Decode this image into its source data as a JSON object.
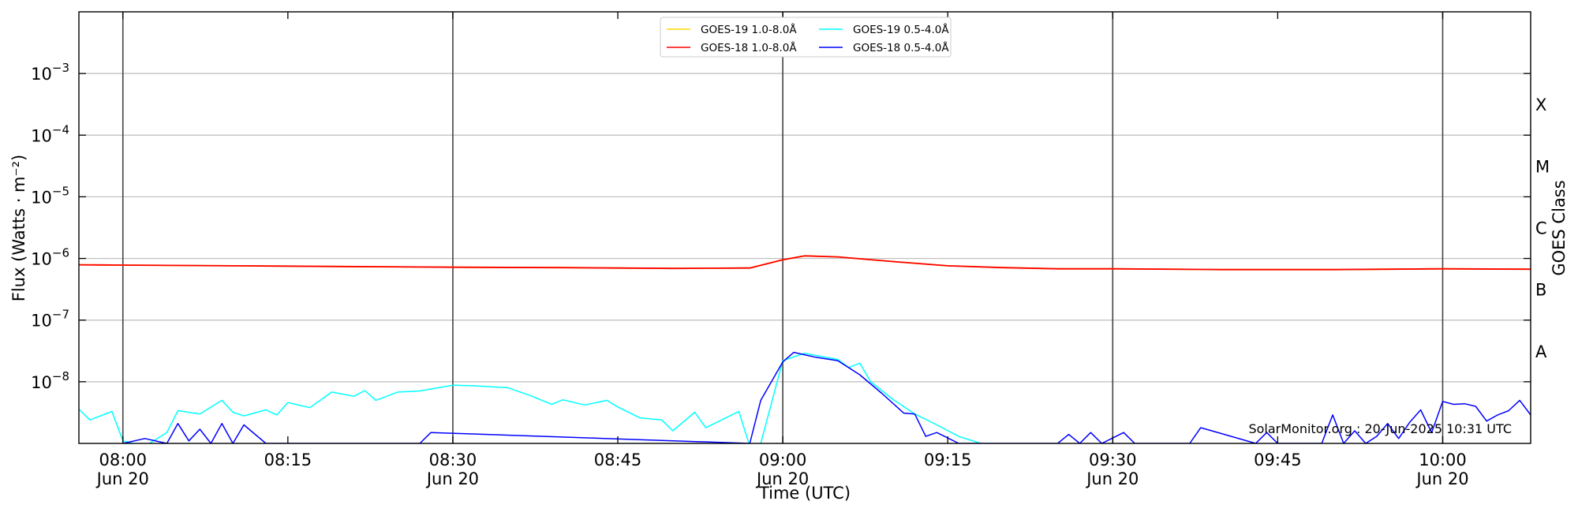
{
  "chart_data": {
    "type": "line",
    "title": "",
    "xlabel": "Time (UTC)",
    "ylabel": "Flux (Watts · m⁻²)",
    "y_scale": "log",
    "ylim": [
      1e-09,
      0.01
    ],
    "xlim": [
      "2025-06-20 07:56",
      "2025-06-20 10:08"
    ],
    "grid": "horizontal at decades, vertical at half-hours",
    "legend_position": "top-center",
    "y_ticks": [
      {
        "value": 1e-08,
        "base": "10",
        "exp": "−8"
      },
      {
        "value": 1e-07,
        "base": "10",
        "exp": "−7"
      },
      {
        "value": 1e-06,
        "base": "10",
        "exp": "−6"
      },
      {
        "value": 1e-05,
        "base": "10",
        "exp": "−5"
      },
      {
        "value": 0.0001,
        "base": "10",
        "exp": "−4"
      },
      {
        "value": 0.001,
        "base": "10",
        "exp": "−3"
      }
    ],
    "x_ticks": [
      {
        "time": "2025-06-20 08:00",
        "label": "08:00",
        "sublabel": "Jun 20"
      },
      {
        "time": "2025-06-20 08:15",
        "label": "08:15",
        "sublabel": ""
      },
      {
        "time": "2025-06-20 08:30",
        "label": "08:30",
        "sublabel": "Jun 20"
      },
      {
        "time": "2025-06-20 08:45",
        "label": "08:45",
        "sublabel": ""
      },
      {
        "time": "2025-06-20 09:00",
        "label": "09:00",
        "sublabel": "Jun 20"
      },
      {
        "time": "2025-06-20 09:15",
        "label": "09:15",
        "sublabel": ""
      },
      {
        "time": "2025-06-20 09:30",
        "label": "09:30",
        "sublabel": "Jun 20"
      },
      {
        "time": "2025-06-20 09:45",
        "label": "09:45",
        "sublabel": ""
      },
      {
        "time": "2025-06-20 10:00",
        "label": "10:00",
        "sublabel": "Jun 20"
      }
    ],
    "vertical_lines": [
      "2025-06-20 08:00",
      "2025-06-20 08:30",
      "2025-06-20 09:00",
      "2025-06-20 09:30",
      "2025-06-20 10:00"
    ],
    "right_axis": {
      "label": "GOES Class",
      "classes": [
        {
          "name": "A",
          "value": 3.16e-08
        },
        {
          "name": "B",
          "value": 3.16e-07
        },
        {
          "name": "C",
          "value": 3.16e-06
        },
        {
          "name": "M",
          "value": 3.16e-05
        },
        {
          "name": "X",
          "value": 0.000316
        }
      ]
    },
    "annotation": "SolarMonitor.org : 20-Jun-2025 10:31 UTC",
    "series": [
      {
        "name": "GOES-19 1.0-8.0Å",
        "color": "#ffd700",
        "x": [
          "2025-06-20 07:56",
          "2025-06-20 08:00",
          "2025-06-20 08:10",
          "2025-06-20 08:20",
          "2025-06-20 08:30",
          "2025-06-20 08:40",
          "2025-06-20 08:50",
          "2025-06-20 08:57",
          "2025-06-20 09:00",
          "2025-06-20 09:02",
          "2025-06-20 09:05",
          "2025-06-20 09:10",
          "2025-06-20 09:15",
          "2025-06-20 09:20",
          "2025-06-20 09:25",
          "2025-06-20 09:30",
          "2025-06-20 09:40",
          "2025-06-20 09:50",
          "2025-06-20 10:00",
          "2025-06-20 10:08"
        ],
        "values": [
          7.9e-07,
          7.8e-07,
          7.6e-07,
          7.4e-07,
          7.2e-07,
          7.1e-07,
          6.9e-07,
          7e-07,
          9.5e-07,
          1.1e-06,
          1.06e-06,
          8.9e-07,
          7.6e-07,
          7.1e-07,
          6.8e-07,
          6.8e-07,
          6.6e-07,
          6.6e-07,
          6.8e-07,
          6.7e-07
        ]
      },
      {
        "name": "GOES-18 1.0-8.0Å",
        "color": "#ff0000",
        "x": [
          "2025-06-20 07:56",
          "2025-06-20 08:00",
          "2025-06-20 08:10",
          "2025-06-20 08:20",
          "2025-06-20 08:30",
          "2025-06-20 08:40",
          "2025-06-20 08:50",
          "2025-06-20 08:57",
          "2025-06-20 09:00",
          "2025-06-20 09:02",
          "2025-06-20 09:05",
          "2025-06-20 09:10",
          "2025-06-20 09:15",
          "2025-06-20 09:20",
          "2025-06-20 09:25",
          "2025-06-20 09:30",
          "2025-06-20 09:40",
          "2025-06-20 09:50",
          "2025-06-20 10:00",
          "2025-06-20 10:08"
        ],
        "values": [
          7.9e-07,
          7.8e-07,
          7.6e-07,
          7.4e-07,
          7.2e-07,
          7.1e-07,
          6.9e-07,
          7e-07,
          9.5e-07,
          1.1e-06,
          1.06e-06,
          8.9e-07,
          7.6e-07,
          7.1e-07,
          6.8e-07,
          6.8e-07,
          6.6e-07,
          6.6e-07,
          6.8e-07,
          6.7e-07
        ]
      },
      {
        "name": "GOES-19 0.5-4.0Å",
        "color": "#00ffff",
        "x": [
          "2025-06-20 07:56",
          "2025-06-20 07:57",
          "2025-06-20 07:59",
          "2025-06-20 08:00",
          "2025-06-20 08:02",
          "2025-06-20 08:04",
          "2025-06-20 08:05",
          "2025-06-20 08:07",
          "2025-06-20 08:09",
          "2025-06-20 08:10",
          "2025-06-20 08:11",
          "2025-06-20 08:13",
          "2025-06-20 08:14",
          "2025-06-20 08:15",
          "2025-06-20 08:17",
          "2025-06-20 08:19",
          "2025-06-20 08:21",
          "2025-06-20 08:22",
          "2025-06-20 08:23",
          "2025-06-20 08:25",
          "2025-06-20 08:27",
          "2025-06-20 08:30",
          "2025-06-20 08:32",
          "2025-06-20 08:34",
          "2025-06-20 08:35",
          "2025-06-20 08:37",
          "2025-06-20 08:39",
          "2025-06-20 08:40",
          "2025-06-20 08:42",
          "2025-06-20 08:44",
          "2025-06-20 08:45",
          "2025-06-20 08:47",
          "2025-06-20 08:49",
          "2025-06-20 08:50",
          "2025-06-20 08:52",
          "2025-06-20 08:53",
          "2025-06-20 08:54",
          "2025-06-20 08:56",
          "2025-06-20 08:57",
          "2025-06-20 08:58",
          "2025-06-20 09:00",
          "2025-06-20 09:02",
          "2025-06-20 09:05",
          "2025-06-20 09:06",
          "2025-06-20 09:07",
          "2025-06-20 09:08",
          "2025-06-20 09:10",
          "2025-06-20 09:12",
          "2025-06-20 09:14",
          "2025-06-20 09:16",
          "2025-06-20 09:18",
          "2025-06-20 09:19"
        ],
        "values": [
          3.6e-09,
          2.4e-09,
          3.3e-09,
          1.1e-09,
          9e-10,
          1.5e-09,
          3.4e-09,
          3e-09,
          5e-09,
          3.2e-09,
          2.8e-09,
          3.5e-09,
          2.9e-09,
          4.6e-09,
          3.8e-09,
          6.8e-09,
          5.8e-09,
          7.2e-09,
          5e-09,
          6.8e-09,
          7.1e-09,
          8.8e-09,
          8.6e-09,
          8.2e-09,
          8e-09,
          6e-09,
          4.3e-09,
          5.1e-09,
          4.2e-09,
          5e-09,
          3.9e-09,
          2.6e-09,
          2.4e-09,
          1.6e-09,
          3.2e-09,
          1.8e-09,
          2.2e-09,
          3.3e-09,
          9e-10,
          1e-09,
          2.2e-08,
          2.9e-08,
          2.3e-08,
          1.7e-08,
          2e-08,
          1e-08,
          5.2e-09,
          3e-09,
          2e-09,
          1.3e-09,
          1e-09,
          9e-10
        ]
      },
      {
        "name": "GOES-18 0.5-4.0Å",
        "color": "#0000ff",
        "x": [
          "2025-06-20 08:00",
          "2025-06-20 08:02",
          "2025-06-20 08:04",
          "2025-06-20 08:05",
          "2025-06-20 08:06",
          "2025-06-20 08:07",
          "2025-06-20 08:08",
          "2025-06-20 08:09",
          "2025-06-20 08:10",
          "2025-06-20 08:11",
          "2025-06-20 08:13",
          "2025-06-20 08:14",
          "2025-06-20 08:27",
          "2025-06-20 08:28",
          "2025-06-20 08:57",
          "2025-06-20 08:58",
          "2025-06-20 09:00",
          "2025-06-20 09:01",
          "2025-06-20 09:03",
          "2025-06-20 09:05",
          "2025-06-20 09:07",
          "2025-06-20 09:09",
          "2025-06-20 09:11",
          "2025-06-20 09:12",
          "2025-06-20 09:13",
          "2025-06-20 09:14",
          "2025-06-20 09:16",
          "2025-06-20 09:17",
          "2025-06-20 09:25",
          "2025-06-20 09:26",
          "2025-06-20 09:27",
          "2025-06-20 09:28",
          "2025-06-20 09:29",
          "2025-06-20 09:31",
          "2025-06-20 09:32",
          "2025-06-20 09:37",
          "2025-06-20 09:38",
          "2025-06-20 09:39",
          "2025-06-20 09:43",
          "2025-06-20 09:44",
          "2025-06-20 09:45",
          "2025-06-20 09:49",
          "2025-06-20 09:50",
          "2025-06-20 09:51",
          "2025-06-20 09:52",
          "2025-06-20 09:53",
          "2025-06-20 09:54",
          "2025-06-20 09:55",
          "2025-06-20 09:56",
          "2025-06-20 09:57",
          "2025-06-20 09:58",
          "2025-06-20 09:59",
          "2025-06-20 10:00",
          "2025-06-20 10:01",
          "2025-06-20 10:02",
          "2025-06-20 10:03",
          "2025-06-20 10:04",
          "2025-06-20 10:05",
          "2025-06-20 10:06",
          "2025-06-20 10:07",
          "2025-06-20 10:08"
        ],
        "values": [
          1e-09,
          1.2e-09,
          1e-09,
          2.1e-09,
          1.1e-09,
          1.7e-09,
          1e-09,
          2.1e-09,
          1e-09,
          2e-09,
          1e-09,
          1e-09,
          1e-09,
          1.5e-09,
          1e-09,
          5e-09,
          2.1e-08,
          3e-08,
          2.5e-08,
          2.2e-08,
          1.3e-08,
          6.5e-09,
          3.1e-09,
          3e-09,
          1.3e-09,
          1.5e-09,
          1e-09,
          1e-09,
          1e-09,
          1.4e-09,
          1e-09,
          1.5e-09,
          1e-09,
          1.5e-09,
          1e-09,
          1e-09,
          1.8e-09,
          1.6e-09,
          1e-09,
          1.5e-09,
          1e-09,
          1e-09,
          2.9e-09,
          1e-09,
          1.6e-09,
          1e-09,
          1.3e-09,
          2.1e-09,
          1.2e-09,
          2.2e-09,
          3.5e-09,
          1.5e-09,
          4.8e-09,
          4.3e-09,
          4.4e-09,
          4e-09,
          2.3e-09,
          2.9e-09,
          3.4e-09,
          5e-09,
          2.9e-09
        ]
      }
    ]
  }
}
